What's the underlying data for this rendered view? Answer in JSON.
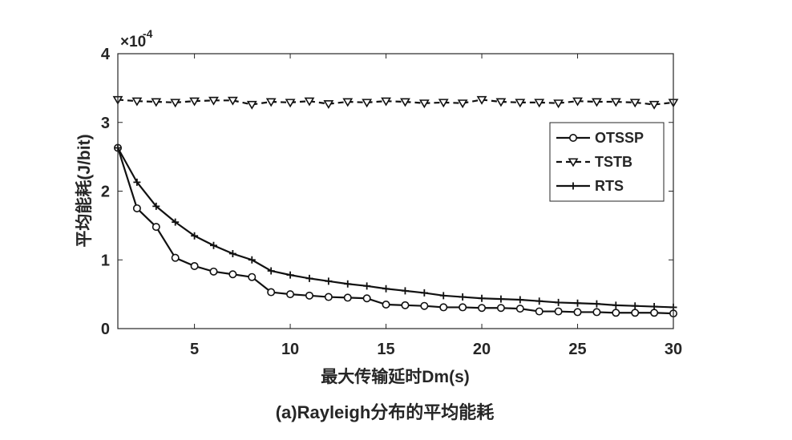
{
  "chart_data": {
    "type": "line",
    "title": "",
    "caption": "(a)Rayleigh分布的平均能耗",
    "xlabel": "最大传输延时Dm(s)",
    "ylabel": "平均能耗(J/bit)",
    "y_exponent_label": "×10",
    "y_exponent_power": "-4",
    "xlim": [
      1,
      30
    ],
    "ylim": [
      0,
      4
    ],
    "xticks": [
      5,
      10,
      15,
      20,
      25,
      30
    ],
    "yticks": [
      0,
      1,
      2,
      3,
      4
    ],
    "grid": false,
    "legend_position": "right",
    "x": [
      1,
      2,
      3,
      4,
      5,
      6,
      7,
      8,
      9,
      10,
      11,
      12,
      13,
      14,
      15,
      16,
      17,
      18,
      19,
      20,
      21,
      22,
      23,
      24,
      25,
      26,
      27,
      28,
      29,
      30
    ],
    "series": [
      {
        "name": "OTSSP",
        "line_style": "solid",
        "marker": "circle",
        "values": [
          2.63,
          1.75,
          1.48,
          1.03,
          0.91,
          0.83,
          0.79,
          0.75,
          0.53,
          0.5,
          0.48,
          0.46,
          0.45,
          0.44,
          0.35,
          0.34,
          0.33,
          0.31,
          0.31,
          0.3,
          0.3,
          0.29,
          0.25,
          0.25,
          0.24,
          0.24,
          0.23,
          0.23,
          0.23,
          0.22
        ]
      },
      {
        "name": "TSTB",
        "line_style": "dashed",
        "marker": "triangle-down",
        "values": [
          3.33,
          3.31,
          3.3,
          3.29,
          3.31,
          3.32,
          3.32,
          3.26,
          3.3,
          3.29,
          3.31,
          3.27,
          3.3,
          3.29,
          3.31,
          3.3,
          3.28,
          3.29,
          3.28,
          3.33,
          3.3,
          3.29,
          3.29,
          3.28,
          3.31,
          3.3,
          3.3,
          3.29,
          3.26,
          3.29
        ]
      },
      {
        "name": "RTS",
        "line_style": "solid",
        "marker": "plus",
        "values": [
          2.63,
          2.13,
          1.78,
          1.55,
          1.35,
          1.21,
          1.09,
          1.0,
          0.84,
          0.78,
          0.73,
          0.69,
          0.65,
          0.62,
          0.58,
          0.55,
          0.52,
          0.48,
          0.46,
          0.44,
          0.43,
          0.42,
          0.4,
          0.38,
          0.37,
          0.36,
          0.34,
          0.33,
          0.32,
          0.31
        ]
      }
    ]
  }
}
